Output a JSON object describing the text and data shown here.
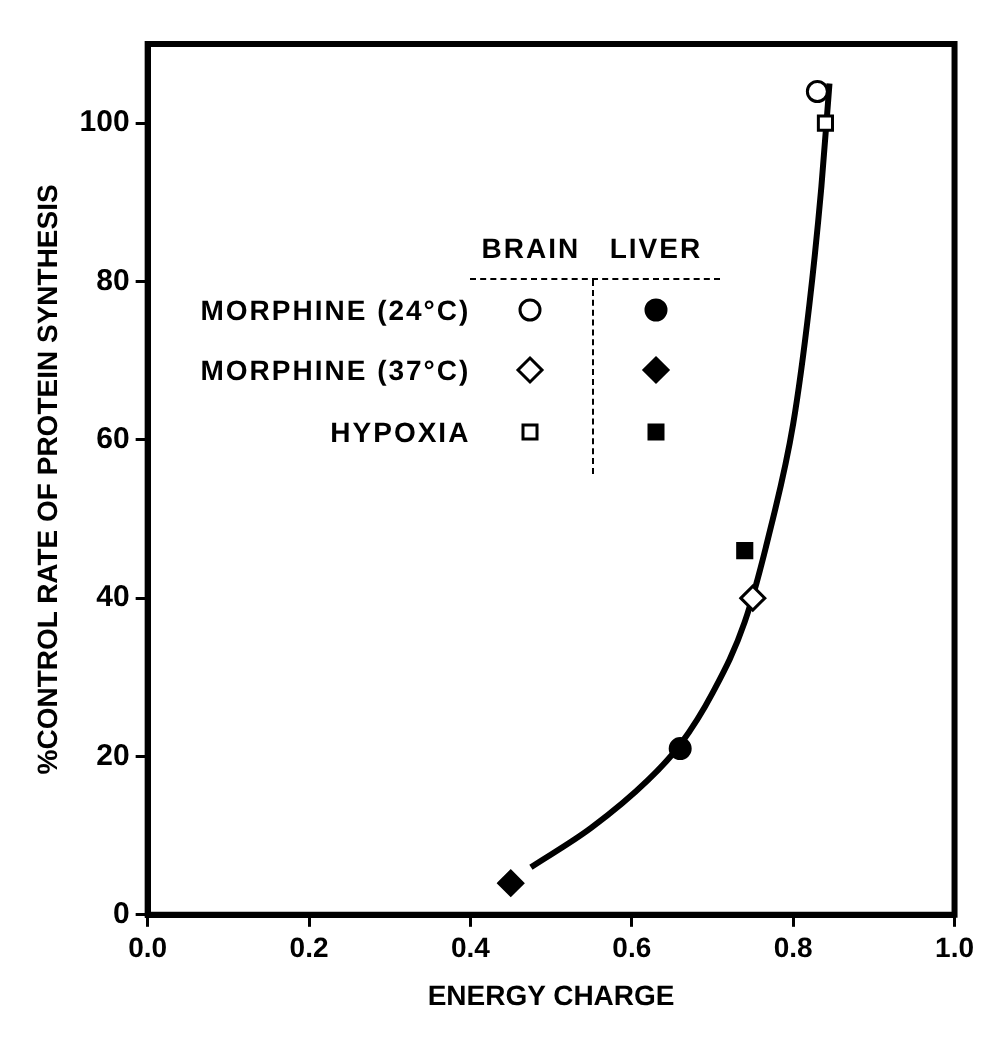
{
  "chart_data": {
    "type": "scatter",
    "xlabel": "ENERGY CHARGE",
    "ylabel": "%CONTROL RATE OF PROTEIN SYNTHESIS",
    "xlim": [
      0,
      1
    ],
    "ylim": [
      0,
      110
    ],
    "xticks": [
      {
        "value": 0,
        "label": "0.0"
      },
      0.2,
      0.4,
      0.6,
      0.8,
      {
        "value": 1,
        "label": "1.0"
      }
    ],
    "yticks": [
      0,
      20,
      40,
      60,
      80,
      100
    ],
    "grid": false,
    "legend": "top",
    "annotations": [
      "BRAIN",
      "LIVER"
    ],
    "series": [
      {
        "name": "MORPHINE (24°C)",
        "color": "#000000",
        "marker": "circle",
        "x": [
          0.83
        ],
        "values": [
          104
        ]
      },
      {
        "name": "MORPHINE (37°C)",
        "color": "#000000",
        "marker": "diamond",
        "x": [
          0.75
        ],
        "values": [
          40
        ]
      },
      {
        "name": "HYPOXIA",
        "color": "#000000",
        "marker": "square",
        "x": [
          0.84
        ],
        "values": [
          100
        ]
      },
      {
        "color": "#000000",
        "marker": "circle",
        "x": [
          0.66
        ],
        "values": [
          21
        ]
      },
      {
        "color": "#000000",
        "marker": "diamond",
        "x": [
          0.45
        ],
        "values": [
          4
        ]
      },
      {
        "color": "#000000",
        "marker": "square",
        "x": [
          0.74
        ],
        "values": [
          46
        ]
      },
      {
        "type": "line",
        "color": "#000000",
        "marker": "none",
        "x": [
          0.475,
          0.55,
          0.62,
          0.66,
          0.7,
          0.74,
          0.77,
          0.8,
          0.82,
          0.835,
          0.845
        ],
        "values": [
          6,
          11,
          17,
          21.5,
          28,
          37,
          48,
          62,
          77,
          92,
          105
        ]
      }
    ]
  }
}
